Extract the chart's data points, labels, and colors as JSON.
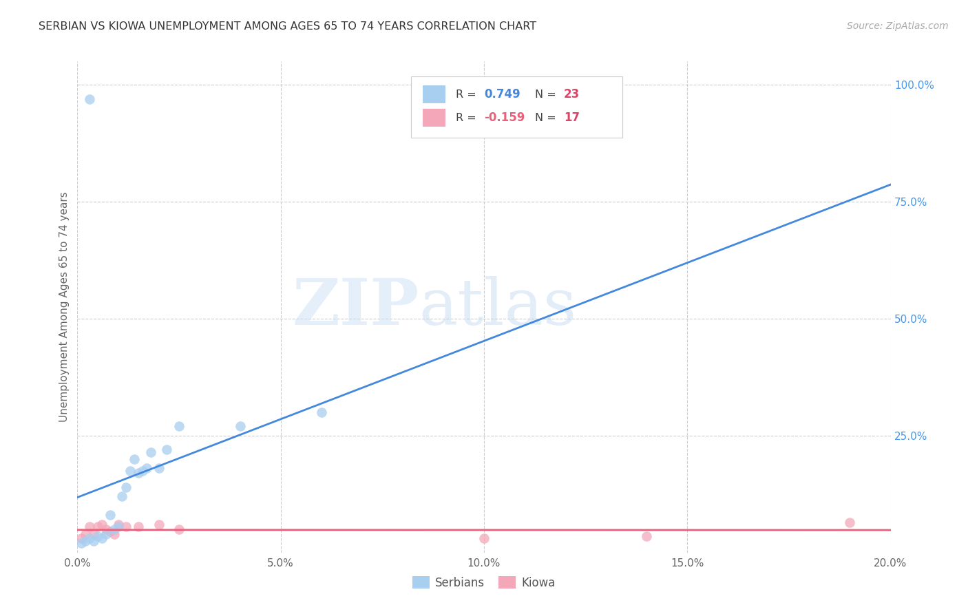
{
  "title": "SERBIAN VS KIOWA UNEMPLOYMENT AMONG AGES 65 TO 74 YEARS CORRELATION CHART",
  "source": "Source: ZipAtlas.com",
  "ylabel": "Unemployment Among Ages 65 to 74 years",
  "watermark_zip": "ZIP",
  "watermark_atlas": "atlas",
  "xlim": [
    0.0,
    0.2
  ],
  "ylim": [
    0.0,
    1.05
  ],
  "xtick_labels": [
    "0.0%",
    "5.0%",
    "10.0%",
    "15.0%",
    "20.0%"
  ],
  "xtick_vals": [
    0.0,
    0.05,
    0.1,
    0.15,
    0.2
  ],
  "ytick_labels": [
    "25.0%",
    "50.0%",
    "75.0%",
    "100.0%"
  ],
  "ytick_vals": [
    0.25,
    0.5,
    0.75,
    1.0
  ],
  "serbian_color": "#a8cef0",
  "kiowa_color": "#f4a7b9",
  "serbian_line_color": "#4488dd",
  "kiowa_line_color": "#e8607a",
  "serbian_R": 0.749,
  "serbian_N": 23,
  "kiowa_R": -0.159,
  "kiowa_N": 17,
  "legend_label_serbian": "Serbians",
  "legend_label_kiowa": "Kiowa",
  "serbian_x": [
    0.001,
    0.002,
    0.003,
    0.004,
    0.005,
    0.006,
    0.007,
    0.008,
    0.009,
    0.01,
    0.011,
    0.012,
    0.013,
    0.014,
    0.015,
    0.016,
    0.017,
    0.018,
    0.02,
    0.022,
    0.025,
    0.04,
    0.06
  ],
  "serbian_y": [
    0.02,
    0.025,
    0.03,
    0.025,
    0.035,
    0.03,
    0.04,
    0.08,
    0.05,
    0.055,
    0.12,
    0.14,
    0.175,
    0.2,
    0.17,
    0.175,
    0.18,
    0.215,
    0.18,
    0.22,
    0.27,
    0.27,
    0.3
  ],
  "serbian_outlier_x": [
    0.003
  ],
  "serbian_outlier_y": [
    0.97
  ],
  "kiowa_x": [
    0.001,
    0.002,
    0.003,
    0.004,
    0.005,
    0.006,
    0.007,
    0.008,
    0.009,
    0.01,
    0.012,
    0.015,
    0.02,
    0.025,
    0.1,
    0.14,
    0.19
  ],
  "kiowa_y": [
    0.03,
    0.04,
    0.055,
    0.04,
    0.055,
    0.06,
    0.05,
    0.045,
    0.04,
    0.06,
    0.055,
    0.055,
    0.06,
    0.05,
    0.03,
    0.035,
    0.065
  ],
  "grid_color": "#cccccc",
  "background_color": "#ffffff",
  "title_color": "#333333",
  "axis_label_color": "#666666",
  "tick_color_right": "#4499ee",
  "tick_color_bottom": "#666666",
  "legend_box_color": "#eeeeee",
  "r_text_color": "#333333",
  "n_color_serbian": "#dd4466",
  "n_color_kiowa": "#dd4466"
}
